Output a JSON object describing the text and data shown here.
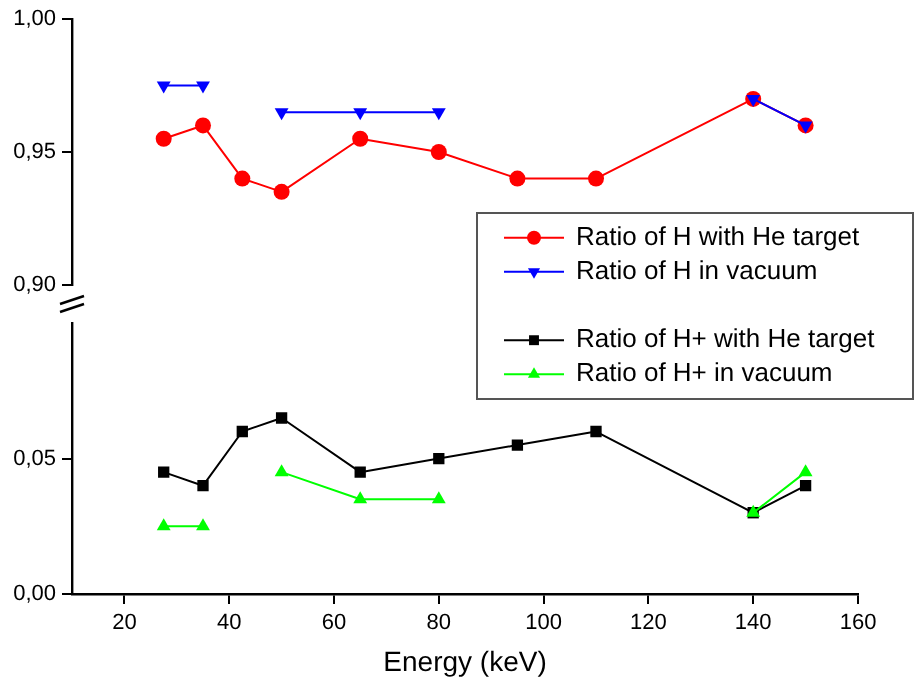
{
  "chart_data": [
    {
      "type": "line",
      "xlim": [
        10,
        160
      ],
      "xticks": [
        20,
        40,
        60,
        80,
        100,
        120,
        140,
        160
      ],
      "ylim": [
        0.9,
        1.0
      ],
      "yticks": [
        {
          "value": 0.9,
          "label": "0,90"
        },
        {
          "value": 0.95,
          "label": "0,95"
        },
        {
          "value": 1.0,
          "label": "1,00"
        }
      ],
      "tick_labels": "y",
      "grid": false,
      "legend": "bottom right",
      "line_style": "solid",
      "series": [
        {
          "name": "Ratio of H with He target",
          "color": "#ff0000",
          "marker": "circle",
          "x": [
            27.5,
            35,
            42.5,
            50,
            65,
            80,
            95,
            110,
            140,
            150
          ],
          "values": [
            0.955,
            0.96,
            0.94,
            0.935,
            0.955,
            0.95,
            0.94,
            0.94,
            0.97,
            0.96
          ]
        },
        {
          "name": "Ratio of H in vacuum",
          "color": "#0000ff",
          "marker": "triangle_down",
          "x": [
            27.5,
            35,
            42.5,
            50,
            65,
            80,
            110,
            140,
            150
          ],
          "values": [
            0.975,
            0.975,
            null,
            0.965,
            0.965,
            0.965,
            null,
            0.97,
            0.96
          ]
        }
      ]
    },
    {
      "type": "line",
      "xlabel": "Energy (keV)",
      "xlim": [
        10,
        160
      ],
      "xticks": [
        20,
        40,
        60,
        80,
        100,
        120,
        140,
        160
      ],
      "ylim": [
        0,
        0.1
      ],
      "yticks": [
        {
          "value": 0,
          "label": "0,00"
        },
        {
          "value": 0.05,
          "label": "0,05"
        }
      ],
      "grid": false,
      "legend": "top right",
      "line_style": "solid",
      "series": [
        {
          "name": "Ratio of H+ with He target",
          "color": "#000000",
          "marker": "square",
          "x": [
            27.5,
            35,
            42.5,
            50,
            65,
            80,
            95,
            110,
            140,
            150
          ],
          "values": [
            0.045,
            0.04,
            0.06,
            0.065,
            0.045,
            0.05,
            0.055,
            0.06,
            0.03,
            0.04
          ]
        },
        {
          "name": "Ratio of H+ in vacuum",
          "color": "#00ff00",
          "marker": "triangle",
          "x": [
            27.5,
            35,
            42.5,
            50,
            65,
            80,
            110,
            140,
            150
          ],
          "values": [
            0.025,
            0.025,
            null,
            0.045,
            0.035,
            0.035,
            null,
            0.03,
            0.045
          ]
        }
      ]
    }
  ]
}
